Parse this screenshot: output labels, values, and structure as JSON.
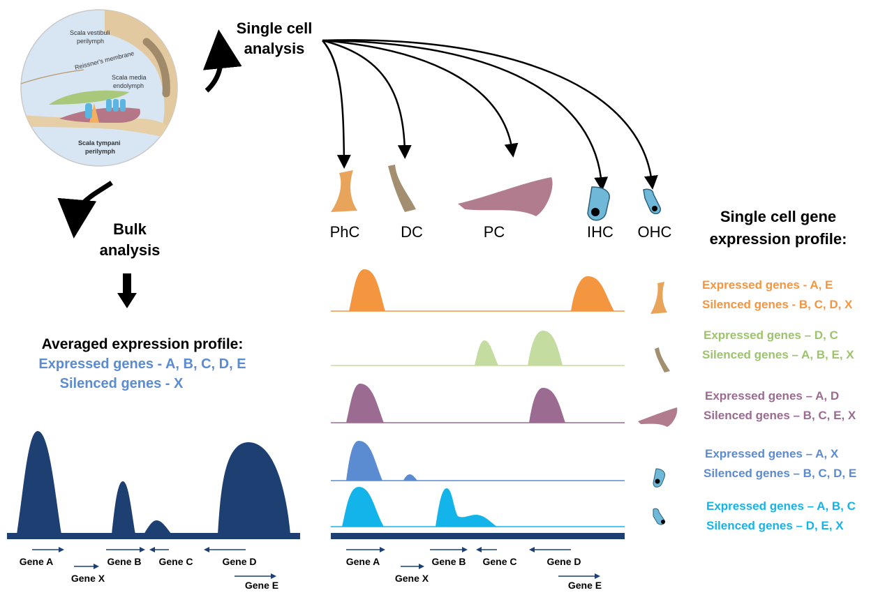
{
  "anatomy": {
    "labels": [
      "Scala vestibuli",
      "perilymph",
      "Reissner's membrane",
      "Scala media",
      "endolymph",
      "Scala tympani",
      "perilymph"
    ]
  },
  "single_cell": {
    "title_line1": "Single cell",
    "title_line2": "analysis",
    "cells": [
      "PhC",
      "DC",
      "PC",
      "IHC",
      "OHC"
    ]
  },
  "bulk": {
    "title_line1": "Bulk",
    "title_line2": "analysis",
    "profile_title": "Averaged expression profile:",
    "expressed": "Expressed  genes - A, B, C, D, E",
    "silenced": "Silenced genes - X"
  },
  "genes": {
    "labels": [
      "Gene A",
      "Gene X",
      "Gene B",
      "Gene C",
      "Gene D",
      "Gene E"
    ]
  },
  "profiles": {
    "title_line1": "Single cell gene",
    "title_line2": "expression profile:",
    "rows": [
      {
        "expressed": "Expressed  genes - A, E",
        "silenced": "Silenced genes - B, C, D, X",
        "color": "#f4953f"
      },
      {
        "expressed": "Expressed  genes – D, C",
        "silenced": "Silenced genes – A, B, E, X",
        "color": "#9cc46a"
      },
      {
        "expressed": "Expressed  genes – A, D",
        "silenced": "Silenced genes – B, C, E, X",
        "color": "#9b6b91"
      },
      {
        "expressed": "Expressed  genes – A, X",
        "silenced": "Silenced genes – B, C, D, E",
        "color": "#5b8bd0"
      },
      {
        "expressed": "Expressed  genes – A, B, C",
        "silenced": "Silenced genes – D, E, X",
        "color": "#13b4ea"
      }
    ]
  },
  "colors": {
    "bulk": "#1d3f72",
    "phc": "#f4953f",
    "dc": "#c4dca0",
    "pc": "#9b6b91",
    "ihc": "#5b8bd0",
    "ohc": "#13b4ea"
  }
}
